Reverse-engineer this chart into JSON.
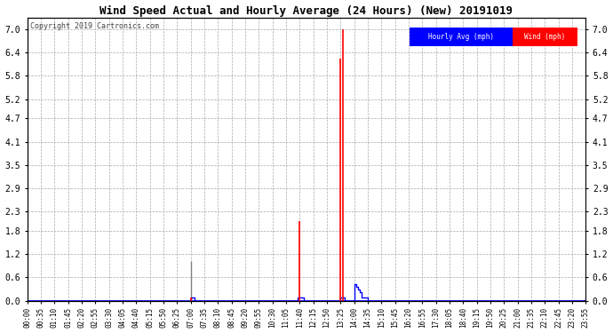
{
  "title": "Wind Speed Actual and Hourly Average (24 Hours) (New) 20191019",
  "copyright": "Copyright 2019 Cartronics.com",
  "yticks": [
    0.0,
    0.6,
    1.2,
    1.8,
    2.3,
    2.9,
    3.5,
    4.1,
    4.7,
    5.2,
    5.8,
    6.4,
    7.0
  ],
  "ylim": [
    0.0,
    7.3
  ],
  "wind_color": "#ff0000",
  "hourly_color": "#0000ff",
  "gray_color": "#808080",
  "background_color": "#ffffff",
  "grid_color": "#aaaaaa",
  "legend_hourly_bg": "#0000ff",
  "legend_wind_bg": "#ff0000",
  "wind_spikes": {
    "07:00": 0.08,
    "11:40": 2.05,
    "13:25": 6.25,
    "13:30": 7.0
  },
  "gray_spike": {
    "07:00": 1.0
  },
  "hourly_steps": [
    [
      "07:00",
      "07:05",
      0.08
    ],
    [
      "11:35",
      "11:45",
      0.08
    ],
    [
      "13:25",
      "13:30",
      0.08
    ],
    [
      "14:00",
      "14:05",
      0.42
    ],
    [
      "14:05",
      "14:10",
      0.35
    ],
    [
      "14:10",
      "14:15",
      0.28
    ],
    [
      "14:15",
      "14:20",
      0.22
    ],
    [
      "14:20",
      "14:30",
      0.08
    ]
  ],
  "xtick_step": 7,
  "figsize": [
    6.9,
    3.75
  ],
  "dpi": 100
}
